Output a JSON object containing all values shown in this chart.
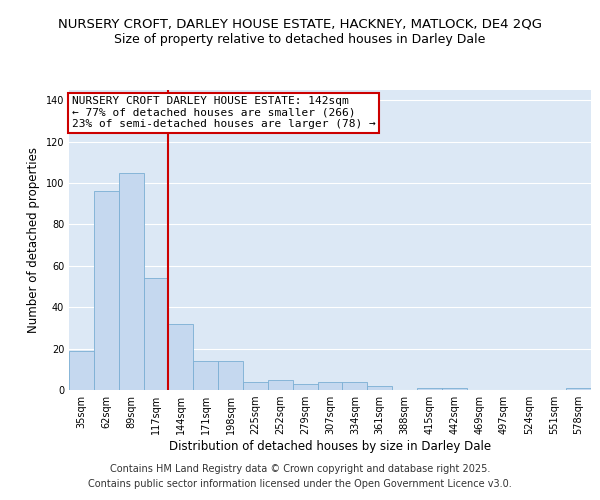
{
  "title_line1": "NURSERY CROFT, DARLEY HOUSE ESTATE, HACKNEY, MATLOCK, DE4 2QG",
  "title_line2": "Size of property relative to detached houses in Darley Dale",
  "categories": [
    "35sqm",
    "62sqm",
    "89sqm",
    "117sqm",
    "144sqm",
    "171sqm",
    "198sqm",
    "225sqm",
    "252sqm",
    "279sqm",
    "307sqm",
    "334sqm",
    "361sqm",
    "388sqm",
    "415sqm",
    "442sqm",
    "469sqm",
    "497sqm",
    "524sqm",
    "551sqm",
    "578sqm"
  ],
  "values": [
    19,
    96,
    105,
    54,
    32,
    14,
    14,
    4,
    5,
    3,
    4,
    4,
    2,
    0,
    1,
    1,
    0,
    0,
    0,
    0,
    1
  ],
  "bar_color": "#c5d8ef",
  "bar_edge_color": "#7bafd4",
  "vline_color": "#cc0000",
  "annotation_box_text": "NURSERY CROFT DARLEY HOUSE ESTATE: 142sqm\n← 77% of detached houses are smaller (266)\n23% of semi-detached houses are larger (78) →",
  "xlabel": "Distribution of detached houses by size in Darley Dale",
  "ylabel": "Number of detached properties",
  "ylim": [
    0,
    145
  ],
  "footer_line1": "Contains HM Land Registry data © Crown copyright and database right 2025.",
  "footer_line2": "Contains public sector information licensed under the Open Government Licence v3.0.",
  "fig_bg_color": "#ffffff",
  "plot_bg_color": "#dce8f5",
  "title_fontsize": 9.5,
  "subtitle_fontsize": 9,
  "axis_label_fontsize": 8.5,
  "tick_fontsize": 7,
  "annotation_fontsize": 8,
  "footer_fontsize": 7
}
